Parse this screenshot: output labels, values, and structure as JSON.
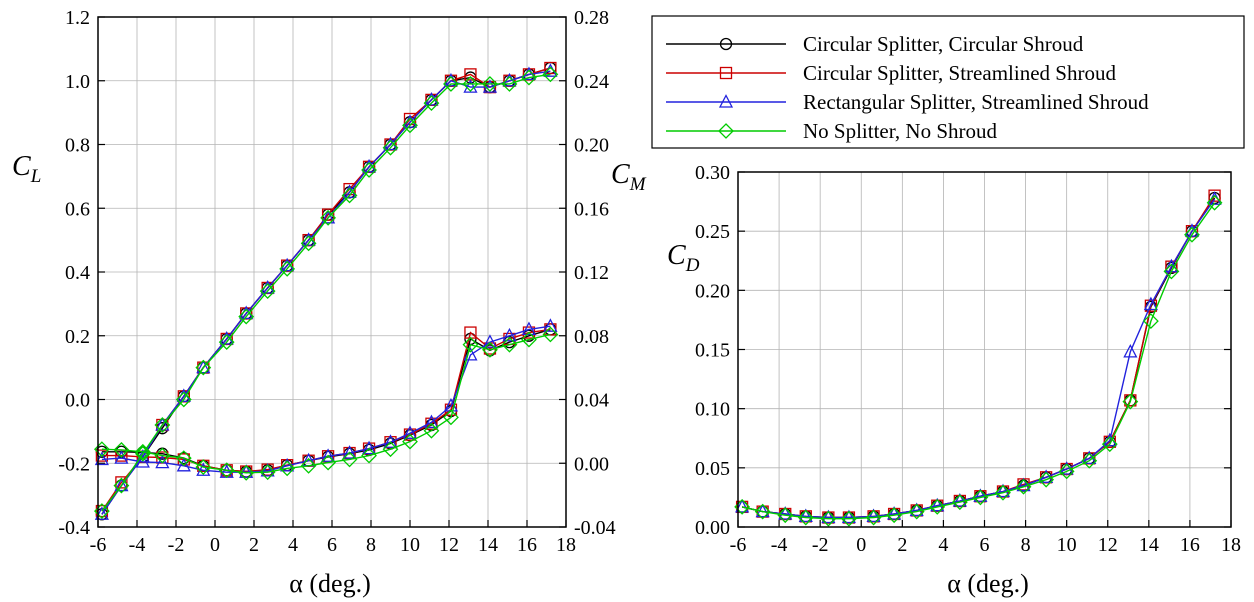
{
  "chart_data": [
    {
      "type": "line",
      "panel": "left",
      "xlabel": "α (deg.)",
      "xlim": [
        -6,
        18
      ],
      "x_ticks": [
        "-6",
        "-4",
        "-2",
        "0",
        "2",
        "4",
        "6",
        "8",
        "10",
        "12",
        "14",
        "16",
        "18"
      ],
      "grid": true,
      "left_axis": {
        "label_main": "C",
        "label_sub": "L",
        "ylim": [
          -0.4,
          1.2
        ],
        "ticks": [
          "-0.4",
          "-0.2",
          "0.0",
          "0.2",
          "0.4",
          "0.6",
          "0.8",
          "1.0",
          "1.2"
        ]
      },
      "right_axis": {
        "label_main": "C",
        "label_sub": "M",
        "ylim": [
          -0.04,
          0.28
        ],
        "ticks": [
          "-0.04",
          "0.00",
          "0.04",
          "0.08",
          "0.12",
          "0.16",
          "0.20",
          "0.24",
          "0.28"
        ]
      },
      "x": [
        -5.8,
        -4.8,
        -3.7,
        -2.7,
        -1.6,
        -0.6,
        0.6,
        1.6,
        2.7,
        3.7,
        4.8,
        5.8,
        6.9,
        7.9,
        9.0,
        10.0,
        11.1,
        12.1,
        13.1,
        14.1,
        15.1,
        16.1,
        17.2
      ],
      "series": [
        {
          "name": "Circular Splitter, Circular Shroud",
          "color": "#000000",
          "marker": "circle",
          "CL": [
            -0.36,
            -0.27,
            -0.18,
            -0.09,
            0.01,
            0.1,
            0.19,
            0.27,
            0.35,
            0.42,
            0.5,
            0.58,
            0.65,
            0.73,
            0.8,
            0.87,
            0.94,
            1.0,
            1.01,
            0.98,
            1.0,
            1.02,
            1.04
          ],
          "CM": [
            0.0072,
            0.0072,
            0.0068,
            0.006,
            0.0032,
            -0.0016,
            -0.0044,
            -0.0052,
            -0.0044,
            -0.0012,
            0.0016,
            0.004,
            0.006,
            0.0084,
            0.0124,
            0.0176,
            0.024,
            0.0328,
            0.078,
            0.0708,
            0.076,
            0.08,
            0.084
          ]
        },
        {
          "name": "Circular Splitter, Streamlined Shroud",
          "color": "#cc0000",
          "marker": "square",
          "CL": [
            -0.35,
            -0.26,
            -0.18,
            -0.08,
            0.01,
            0.1,
            0.19,
            0.27,
            0.35,
            0.42,
            0.5,
            0.58,
            0.66,
            0.73,
            0.8,
            0.88,
            0.94,
            1.0,
            1.02,
            0.98,
            1.0,
            1.02,
            1.04
          ],
          "CM": [
            0.0048,
            0.0048,
            0.004,
            0.0036,
            0.0024,
            -0.0016,
            -0.0044,
            -0.0052,
            -0.004,
            -0.0012,
            0.0016,
            0.0044,
            0.0064,
            0.0092,
            0.0132,
            0.018,
            0.0248,
            0.0336,
            0.082,
            0.072,
            0.078,
            0.082,
            0.084
          ]
        },
        {
          "name": "Rectangular Splitter, Streamlined Shroud",
          "color": "#2222dd",
          "marker": "triangle",
          "CL": [
            -0.36,
            -0.27,
            -0.18,
            -0.08,
            0.01,
            0.1,
            0.19,
            0.27,
            0.35,
            0.42,
            0.5,
            0.57,
            0.65,
            0.73,
            0.8,
            0.87,
            0.94,
            1.0,
            0.98,
            0.98,
            1.0,
            1.02,
            1.03
          ],
          "CM": [
            0.0024,
            0.0032,
            0.0008,
            0.0004,
            -0.0016,
            -0.0044,
            -0.0056,
            -0.0056,
            -0.0048,
            -0.0016,
            0.0016,
            0.0044,
            0.0064,
            0.0092,
            0.0132,
            0.0188,
            0.0256,
            0.036,
            0.068,
            0.076,
            0.08,
            0.084,
            0.086
          ]
        },
        {
          "name": "No Splitter, No Shroud",
          "color": "#00cc00",
          "marker": "diamond",
          "CL": [
            -0.35,
            -0.27,
            -0.17,
            -0.08,
            0.0,
            0.1,
            0.18,
            0.26,
            0.34,
            0.41,
            0.49,
            0.57,
            0.64,
            0.72,
            0.79,
            0.86,
            0.93,
            0.99,
            0.99,
            0.99,
            0.99,
            1.01,
            1.02
          ],
          "CM": [
            0.0088,
            0.0084,
            0.0072,
            0.0048,
            0.0032,
            -0.0024,
            -0.0044,
            -0.006,
            -0.0056,
            -0.0032,
            -0.0016,
            0.0004,
            0.0024,
            0.0048,
            0.0088,
            0.0136,
            0.0204,
            0.0288,
            0.0744,
            0.0712,
            0.0744,
            0.0776,
            0.0808
          ]
        }
      ]
    },
    {
      "type": "line",
      "panel": "right",
      "xlabel": "α (deg.)",
      "xlim": [
        -6,
        18
      ],
      "x_ticks": [
        "-6",
        "-4",
        "-2",
        "0",
        "2",
        "4",
        "6",
        "8",
        "10",
        "12",
        "14",
        "16",
        "18"
      ],
      "ylabel_main": "C",
      "ylabel_sub": "D",
      "ylim": [
        0,
        0.3
      ],
      "y_ticks": [
        "0.00",
        "0.05",
        "0.10",
        "0.15",
        "0.20",
        "0.25",
        "0.30"
      ],
      "grid": true,
      "x": [
        -5.8,
        -4.8,
        -3.7,
        -2.7,
        -1.6,
        -0.6,
        0.6,
        1.6,
        2.7,
        3.7,
        4.8,
        5.8,
        6.9,
        7.9,
        9.0,
        10.0,
        11.1,
        12.1,
        13.1,
        14.1,
        15.1,
        16.1,
        17.2
      ],
      "series": [
        {
          "name": "Circular Splitter, Circular Shroud",
          "color": "#000000",
          "marker": "circle",
          "values": [
            0.017,
            0.013,
            0.011,
            0.009,
            0.008,
            0.008,
            0.009,
            0.011,
            0.014,
            0.018,
            0.022,
            0.026,
            0.03,
            0.035,
            0.042,
            0.049,
            0.058,
            0.072,
            0.107,
            0.186,
            0.219,
            0.25,
            0.278
          ]
        },
        {
          "name": "Circular Splitter, Streamlined Shroud",
          "color": "#cc0000",
          "marker": "square",
          "values": [
            0.017,
            0.013,
            0.011,
            0.009,
            0.008,
            0.008,
            0.009,
            0.011,
            0.014,
            0.018,
            0.022,
            0.026,
            0.03,
            0.036,
            0.042,
            0.049,
            0.058,
            0.072,
            0.107,
            0.187,
            0.22,
            0.25,
            0.28
          ]
        },
        {
          "name": "Rectangular Splitter, Streamlined Shroud",
          "color": "#2222dd",
          "marker": "triangle",
          "values": [
            0.017,
            0.013,
            0.011,
            0.009,
            0.008,
            0.008,
            0.009,
            0.011,
            0.014,
            0.018,
            0.022,
            0.026,
            0.03,
            0.035,
            0.042,
            0.049,
            0.058,
            0.073,
            0.148,
            0.188,
            0.22,
            0.25,
            0.277
          ]
        },
        {
          "name": "No Splitter, No Shroud",
          "color": "#00cc00",
          "marker": "diamond",
          "values": [
            0.017,
            0.013,
            0.01,
            0.008,
            0.007,
            0.007,
            0.008,
            0.01,
            0.013,
            0.017,
            0.021,
            0.025,
            0.029,
            0.034,
            0.04,
            0.047,
            0.056,
            0.07,
            0.106,
            0.174,
            0.216,
            0.247,
            0.274
          ]
        }
      ]
    }
  ],
  "legend": {
    "placement": "top-right",
    "items": [
      {
        "label": "Circular Splitter, Circular Shroud",
        "color": "#000000",
        "marker": "circle"
      },
      {
        "label": "Circular Splitter, Streamlined Shroud",
        "color": "#cc0000",
        "marker": "square"
      },
      {
        "label": "Rectangular Splitter, Streamlined Shroud",
        "color": "#2222dd",
        "marker": "triangle"
      },
      {
        "label": "No Splitter, No Shroud",
        "color": "#00cc00",
        "marker": "diamond"
      }
    ]
  }
}
